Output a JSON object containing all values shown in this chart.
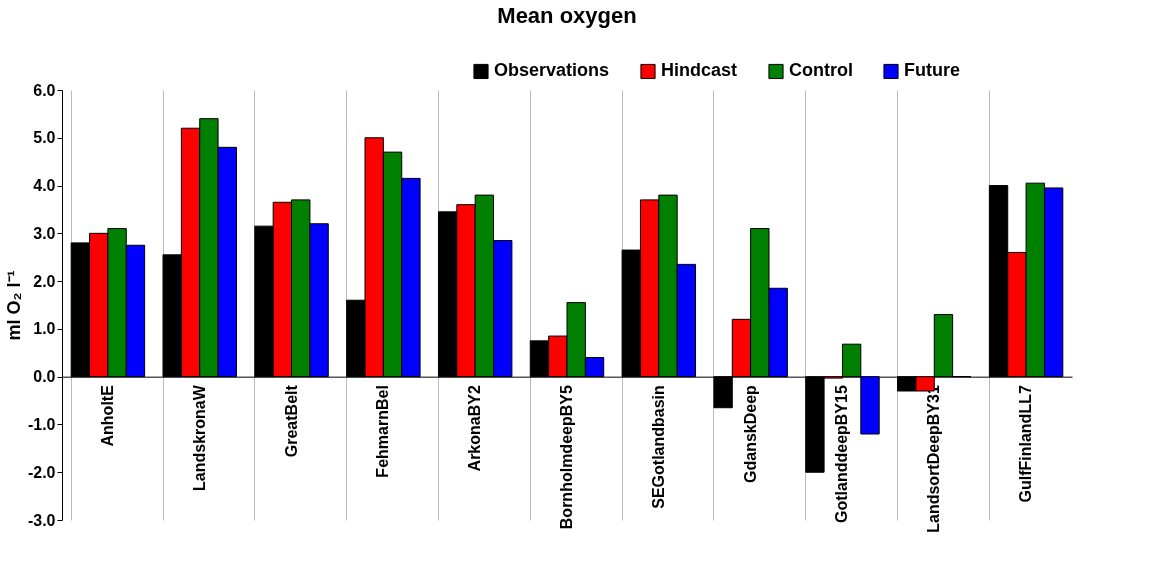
{
  "chart_data": {
    "type": "bar",
    "title": "Mean oxygen",
    "ylabel": "ml O₂ l⁻¹",
    "categories": [
      "AnholtE",
      "LandskronaW",
      "GreatBelt",
      "FehmarnBel",
      "ArkonaBY2",
      "BornholmdeepBY5",
      "SEGotlandbasin",
      "GdanskDeep",
      "GotlanddeepBY15",
      "LandsortDeepBY31",
      "GulfFinlandLL7"
    ],
    "series": [
      {
        "name": "Observations",
        "color": "#000000",
        "values": [
          2.8,
          2.55,
          3.15,
          1.6,
          3.45,
          0.75,
          2.65,
          -0.65,
          -2.0,
          -0.3,
          4.0
        ]
      },
      {
        "name": "Hindcast",
        "color": "#ff0000",
        "values": [
          3.0,
          5.2,
          3.65,
          5.0,
          3.6,
          0.85,
          3.7,
          1.2,
          -0.03,
          -0.3,
          2.6
        ]
      },
      {
        "name": "Control",
        "color": "#008000",
        "values": [
          3.1,
          5.4,
          3.7,
          4.7,
          3.8,
          1.55,
          3.8,
          3.1,
          0.68,
          1.3,
          4.05
        ]
      },
      {
        "name": "Future",
        "color": "#0000ff",
        "values": [
          2.75,
          4.8,
          3.2,
          4.15,
          2.85,
          0.4,
          2.35,
          1.85,
          -1.2,
          0.0,
          3.95
        ]
      }
    ],
    "ylim": [
      -3.0,
      6.0
    ],
    "yticks": [
      {
        "value": -3,
        "label": "-3.0"
      },
      {
        "value": -2,
        "label": "-2.0"
      },
      {
        "value": -1,
        "label": "-1.0"
      },
      {
        "value": 0,
        "label": "0.0"
      },
      {
        "value": 1,
        "label": "1.0"
      },
      {
        "value": 2,
        "label": "2.0"
      },
      {
        "value": 3,
        "label": "3.0"
      },
      {
        "value": 4,
        "label": "4.0"
      },
      {
        "value": 5,
        "label": "5.0"
      },
      {
        "value": 6,
        "label": "6.0"
      }
    ],
    "grid": "x",
    "legend": "top right"
  }
}
